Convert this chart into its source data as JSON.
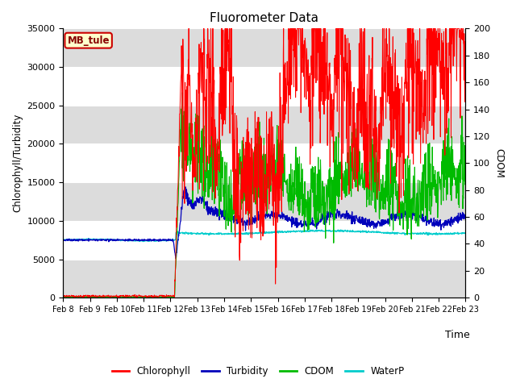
{
  "title": "Fluorometer Data",
  "xlabel": "Time",
  "ylabel_left": "Chlorophyll/Turbidity",
  "ylabel_right": "CDOM",
  "station_label": "MB_tule",
  "ylim_left": [
    0,
    35000
  ],
  "ylim_right": [
    0,
    200
  ],
  "x_tick_labels": [
    "Feb 8",
    "Feb 9",
    "Feb 10",
    "Feb 11",
    "Feb 12",
    "Feb 13",
    "Feb 14",
    "Feb 15",
    "Feb 16",
    "Feb 17",
    "Feb 18",
    "Feb 19",
    "Feb 20",
    "Feb 21",
    "Feb 22",
    "Feb 23"
  ],
  "colors": {
    "chlorophyll": "#FF0000",
    "turbidity": "#0000BB",
    "cdom": "#00BB00",
    "waterp": "#00CCCC",
    "background_white": "#FFFFFF",
    "background_gray": "#DCDCDC",
    "station_box_bg": "#FFFFCC",
    "station_box_edge": "#CC0000"
  },
  "legend_labels": [
    "Chlorophyll",
    "Turbidity",
    "CDOM",
    "WaterP"
  ]
}
